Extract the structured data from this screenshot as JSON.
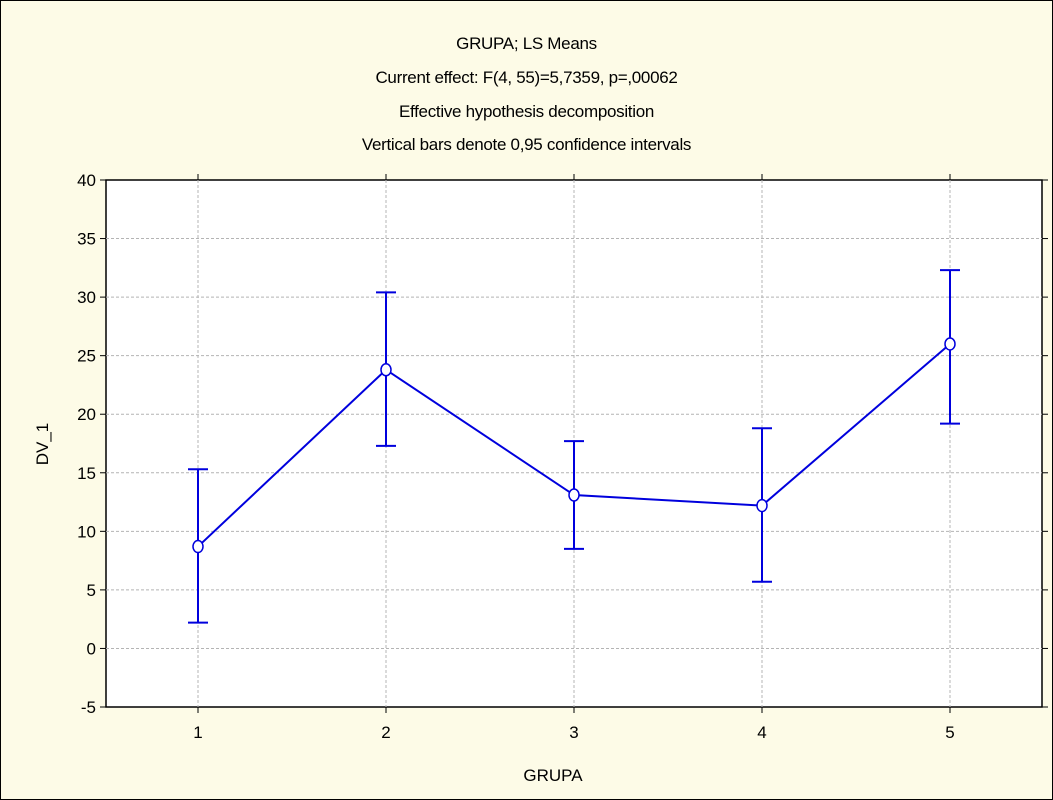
{
  "chart_data": {
    "type": "line",
    "title_lines": [
      "GRUPA; LS Means",
      "Current effect: F(4, 55)=5,7359, p=,00062",
      "Effective hypothesis decomposition",
      "Vertical bars denote 0,95 confidence intervals"
    ],
    "xlabel": "GRUPA",
    "ylabel": "DV_1",
    "categories": [
      "1",
      "2",
      "3",
      "4",
      "5"
    ],
    "y_ticks": [
      "-5",
      "0",
      "5",
      "10",
      "15",
      "20",
      "25",
      "30",
      "35",
      "40"
    ],
    "ylim": [
      -5,
      40
    ],
    "grid": true,
    "series": [
      {
        "values": [
          8.7,
          23.8,
          13.1,
          12.2,
          26.0
        ],
        "ci_lower": [
          2.2,
          17.3,
          8.5,
          5.7,
          19.2
        ],
        "ci_upper": [
          15.3,
          30.4,
          17.7,
          18.8,
          32.3
        ]
      }
    ],
    "colors": {
      "line": "#0000dd",
      "plot_background": "#ffffff",
      "figure_background": "#fdfbe7",
      "grid": "#b4b4b4"
    }
  }
}
